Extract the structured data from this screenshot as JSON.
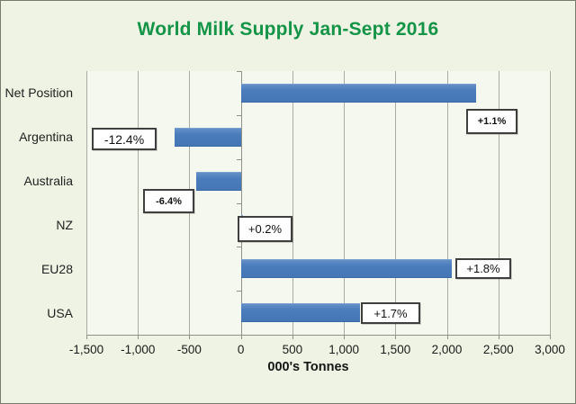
{
  "chart_data": {
    "type": "bar",
    "orientation": "horizontal",
    "title": "World Milk Supply Jan-Sept 2016",
    "xlabel": "000's Tonnes",
    "categories": [
      "Net Position",
      "Argentina",
      "Australia",
      "NZ",
      "EU28",
      "USA"
    ],
    "values": [
      2280,
      -640,
      -430,
      20,
      2050,
      1160
    ],
    "data_labels": [
      "+1.1%",
      "-12.4%",
      "-6.4%",
      "+0.2%",
      "+1.8%",
      "+1.7%"
    ],
    "xlim": [
      -1500,
      3000
    ],
    "xticks": [
      -1500,
      -1000,
      -500,
      0,
      500,
      1000,
      1500,
      2000,
      2500,
      3000
    ],
    "xtick_labels": [
      "-1,500",
      "-1,000",
      "-500",
      "0",
      "500",
      "1,000",
      "1,500",
      "2,000",
      "2,500",
      "3,000"
    ],
    "grid": "vertical-only",
    "legend": "none",
    "colors": {
      "bar": "#4a7cbc",
      "title": "#149447",
      "background": "#eef3e4",
      "plot_background": "#f5f8ee",
      "gridline": "#a9aca0",
      "label_box_bg": "#ffffff",
      "label_box_border": "#3f3f3f"
    }
  }
}
